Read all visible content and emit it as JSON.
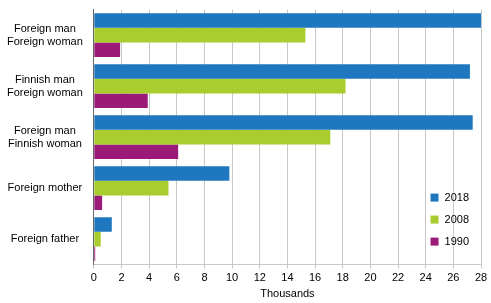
{
  "chart_data": {
    "type": "bar",
    "orientation": "horizontal",
    "categories": [
      [
        "Foreign man",
        "Foreign woman"
      ],
      [
        "Finnish man",
        "Foreign woman"
      ],
      [
        "Foreign man",
        "Finnish woman"
      ],
      [
        "Foreign mother"
      ],
      [
        "Foreign father"
      ]
    ],
    "series": [
      {
        "name": "2018",
        "color": "#1f78bf",
        "values": [
          28.0,
          27.2,
          27.4,
          9.8,
          1.3
        ]
      },
      {
        "name": "2008",
        "color": "#a9cc2e",
        "values": [
          15.3,
          18.2,
          17.1,
          5.4,
          0.5
        ]
      },
      {
        "name": "1990",
        "color": "#9b1a78",
        "values": [
          1.9,
          3.9,
          6.1,
          0.6,
          0.1
        ]
      }
    ],
    "xlabel": "Thousands",
    "xlim": [
      0,
      28
    ],
    "xticks": [
      0,
      2,
      4,
      6,
      8,
      10,
      12,
      14,
      16,
      18,
      20,
      22,
      24,
      26,
      28
    ],
    "grid": true,
    "legend": "lower right"
  }
}
